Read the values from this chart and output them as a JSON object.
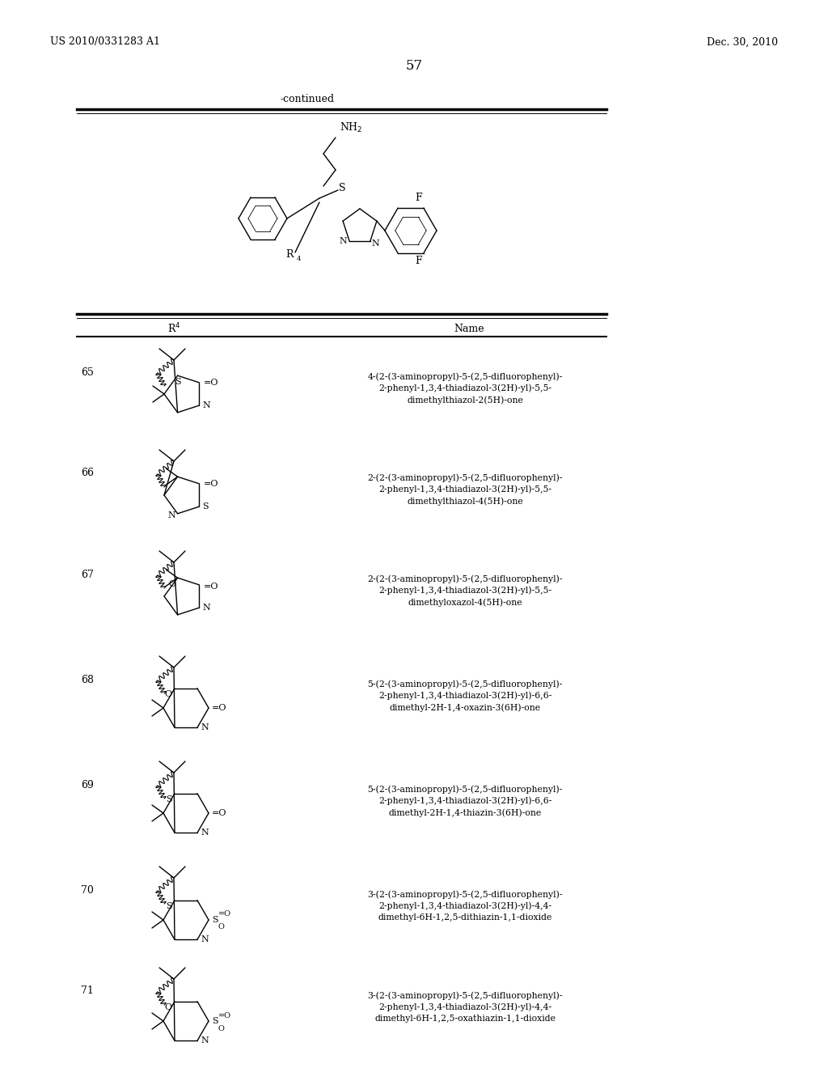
{
  "page_number": "57",
  "patent_number": "US 2010/0331283 A1",
  "patent_date": "Dec. 30, 2010",
  "continued_label": "-continued",
  "entries": [
    {
      "number": "65",
      "name": "4-(2-(3-aminopropyl)-5-(2,5-difluorophenyl)-\n2-phenyl-1,3,4-thiadiazol-3(2H)-yl)-5,5-\ndimethylthiazol-2(5H)-one"
    },
    {
      "number": "66",
      "name": "2-(2-(3-aminopropyl)-5-(2,5-difluorophenyl)-\n2-phenyl-1,3,4-thiadiazol-3(2H)-yl)-5,5-\ndimethylthiazol-4(5H)-one"
    },
    {
      "number": "67",
      "name": "2-(2-(3-aminopropyl)-5-(2,5-difluorophenyl)-\n2-phenyl-1,3,4-thiadiazol-3(2H)-yl)-5,5-\ndimethyloxazol-4(5H)-one"
    },
    {
      "number": "68",
      "name": "5-(2-(3-aminopropyl)-5-(2,5-difluorophenyl)-\n2-phenyl-1,3,4-thiadiazol-3(2H)-yl)-6,6-\ndimethyl-2H-1,4-oxazin-3(6H)-one"
    },
    {
      "number": "69",
      "name": "5-(2-(3-aminopropyl)-5-(2,5-difluorophenyl)-\n2-phenyl-1,3,4-thiadiazol-3(2H)-yl)-6,6-\ndimethyl-2H-1,4-thiazin-3(6H)-one"
    },
    {
      "number": "70",
      "name": "3-(2-(3-aminopropyl)-5-(2,5-difluorophenyl)-\n2-phenyl-1,3,4-thiadiazol-3(2H)-yl)-4,4-\ndimethyl-6H-1,2,5-dithiazin-1,1-dioxide"
    },
    {
      "number": "71",
      "name": "3-(2-(3-aminopropyl)-5-(2,5-difluorophenyl)-\n2-phenyl-1,3,4-thiadiazol-3(2H)-yl)-4,4-\ndimethyl-6H-1,2,5-oxathiazin-1,1-dioxide"
    }
  ]
}
